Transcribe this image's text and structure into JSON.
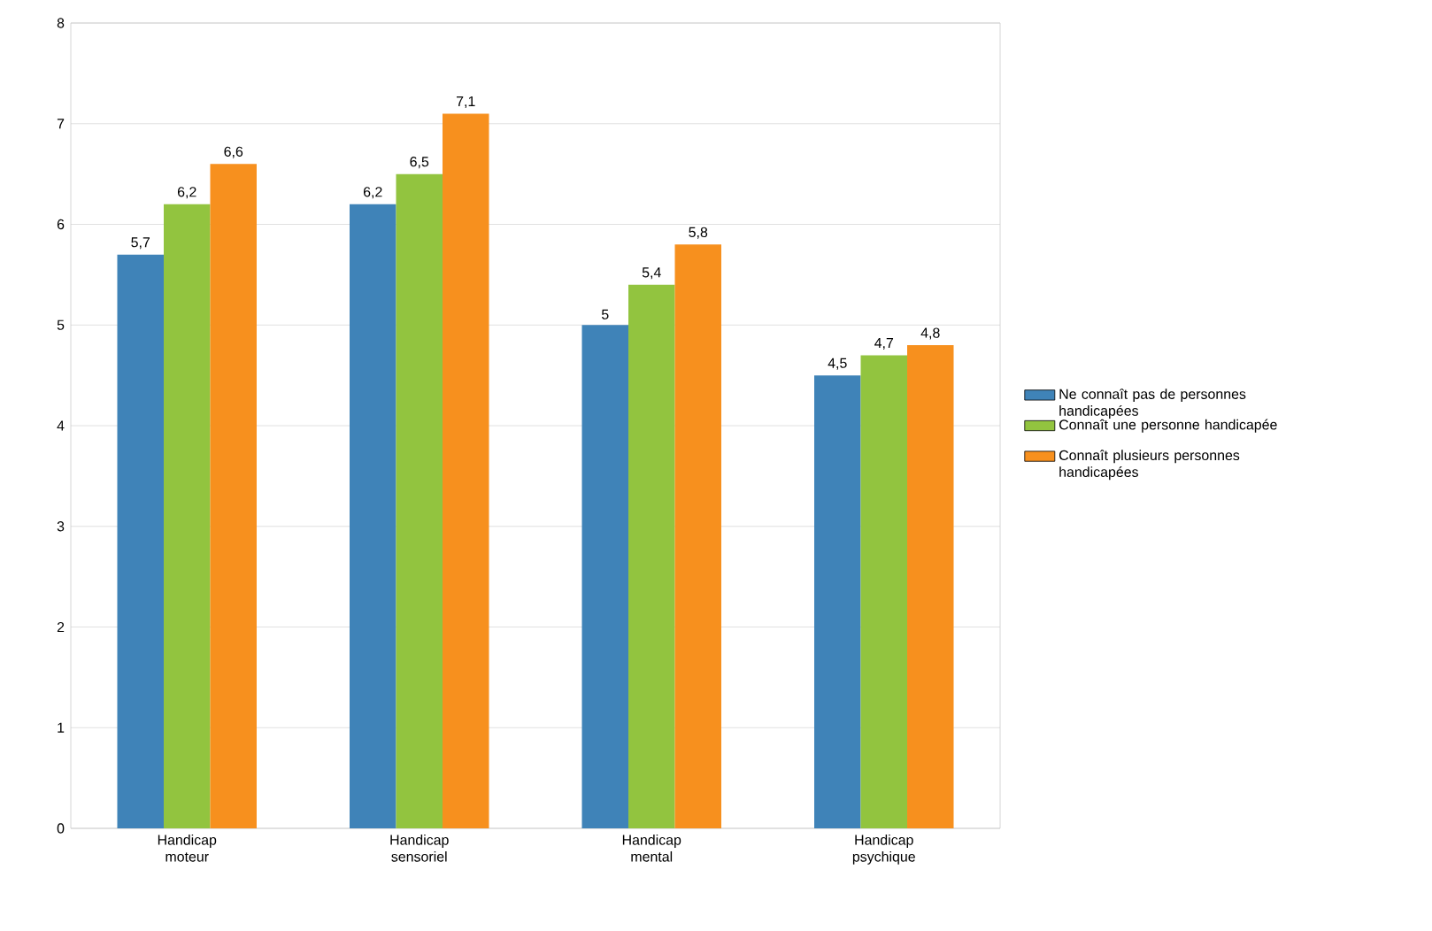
{
  "chart_data": {
    "type": "bar",
    "categories": [
      "Handicap moteur",
      "Handicap sensoriel",
      "Handicap mental",
      "Handicap psychique"
    ],
    "series": [
      {
        "name": "Ne connaît pas de personnes handicapées",
        "color": "#3f83b8",
        "values": [
          5.7,
          6.2,
          5,
          4.5
        ],
        "value_labels": [
          "5,7",
          "6,2",
          "5",
          "4,5"
        ]
      },
      {
        "name": "Connaît une personne handicapée",
        "color": "#92c43f",
        "values": [
          6.2,
          6.5,
          5.4,
          4.7
        ],
        "value_labels": [
          "6,2",
          "6,5",
          "5,4",
          "4,7"
        ]
      },
      {
        "name": "Connaît plusieurs personnes handicapées",
        "color": "#f7901e",
        "values": [
          6.6,
          7.1,
          5.8,
          4.8
        ],
        "value_labels": [
          "6,6",
          "7,1",
          "5,8",
          "4,8"
        ]
      }
    ],
    "ylim": [
      0,
      8
    ],
    "yticks": [
      0,
      1,
      2,
      3,
      4,
      5,
      6,
      7,
      8
    ],
    "grid": "y",
    "legend": "right"
  }
}
